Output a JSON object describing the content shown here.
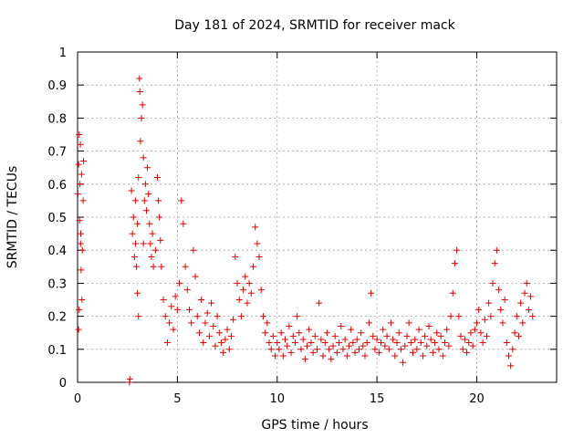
{
  "chart_data": {
    "type": "scatter",
    "title": "Day 181 of 2024, SRMTID for receiver mack",
    "xlabel": "GPS time / hours",
    "ylabel": "SRMTID / TECUs",
    "xlim": [
      0,
      24
    ],
    "ylim": [
      0,
      1
    ],
    "xticks": [
      0,
      5,
      10,
      15,
      20
    ],
    "xtick_labels": [
      "0",
      "5",
      "10",
      "15",
      "20"
    ],
    "yticks": [
      0,
      0.1,
      0.2,
      0.3,
      0.4,
      0.5,
      0.6,
      0.7,
      0.8,
      0.9,
      1
    ],
    "ytick_labels": [
      "0",
      "0.1",
      "0.2",
      "0.3",
      "0.4",
      "0.5",
      "0.6",
      "0.7",
      "0.8",
      "0.9",
      "1"
    ],
    "grid": true,
    "marker": "+",
    "color": "#e00000",
    "series": [
      {
        "name": "SRMTID",
        "points": [
          [
            0.02,
            0.57
          ],
          [
            0.05,
            0.66
          ],
          [
            0.08,
            0.75
          ],
          [
            0.1,
            0.49
          ],
          [
            0.12,
            0.6
          ],
          [
            0.14,
            0.72
          ],
          [
            0.16,
            0.45
          ],
          [
            0.18,
            0.34
          ],
          [
            0.2,
            0.63
          ],
          [
            0.22,
            0.25
          ],
          [
            0.24,
            0.4
          ],
          [
            0.05,
            0.16
          ],
          [
            0.28,
            0.55
          ],
          [
            0.08,
            0.22
          ],
          [
            0.15,
            0.42
          ],
          [
            0.3,
            0.67
          ],
          [
            2.6,
            0.0
          ],
          [
            2.62,
            0.01
          ],
          [
            2.7,
            0.58
          ],
          [
            2.75,
            0.45
          ],
          [
            2.8,
            0.5
          ],
          [
            2.85,
            0.38
          ],
          [
            2.9,
            0.42
          ],
          [
            2.95,
            0.35
          ],
          [
            3.0,
            0.48
          ],
          [
            3.05,
            0.62
          ],
          [
            3.1,
            0.92
          ],
          [
            3.12,
            0.88
          ],
          [
            3.15,
            0.73
          ],
          [
            3.2,
            0.8
          ],
          [
            3.25,
            0.84
          ],
          [
            3.3,
            0.68
          ],
          [
            3.35,
            0.55
          ],
          [
            3.4,
            0.6
          ],
          [
            3.45,
            0.52
          ],
          [
            3.5,
            0.65
          ],
          [
            3.55,
            0.57
          ],
          [
            3.6,
            0.48
          ],
          [
            3.65,
            0.42
          ],
          [
            3.7,
            0.38
          ],
          [
            3.75,
            0.45
          ],
          [
            3.8,
            0.35
          ],
          [
            3.9,
            0.4
          ],
          [
            4.0,
            0.62
          ],
          [
            4.05,
            0.55
          ],
          [
            4.1,
            0.5
          ],
          [
            4.15,
            0.43
          ],
          [
            4.2,
            0.35
          ],
          [
            4.3,
            0.25
          ],
          [
            4.4,
            0.2
          ],
          [
            3.0,
            0.27
          ],
          [
            3.05,
            0.2
          ],
          [
            2.9,
            0.55
          ],
          [
            3.3,
            0.42
          ],
          [
            4.5,
            0.12
          ],
          [
            4.6,
            0.18
          ],
          [
            4.7,
            0.23
          ],
          [
            4.8,
            0.16
          ],
          [
            4.9,
            0.26
          ],
          [
            5.0,
            0.22
          ],
          [
            5.1,
            0.3
          ],
          [
            5.2,
            0.55
          ],
          [
            5.3,
            0.48
          ],
          [
            5.4,
            0.35
          ],
          [
            5.5,
            0.28
          ],
          [
            5.6,
            0.22
          ],
          [
            5.7,
            0.18
          ],
          [
            5.8,
            0.4
          ],
          [
            5.9,
            0.32
          ],
          [
            6.0,
            0.2
          ],
          [
            6.1,
            0.15
          ],
          [
            6.2,
            0.25
          ],
          [
            6.3,
            0.12
          ],
          [
            6.4,
            0.18
          ],
          [
            6.5,
            0.21
          ],
          [
            6.6,
            0.14
          ],
          [
            6.7,
            0.24
          ],
          [
            6.8,
            0.17
          ],
          [
            6.9,
            0.11
          ],
          [
            7.0,
            0.2
          ],
          [
            7.1,
            0.15
          ],
          [
            7.2,
            0.12
          ],
          [
            7.3,
            0.09
          ],
          [
            7.4,
            0.13
          ],
          [
            7.5,
            0.16
          ],
          [
            7.6,
            0.1
          ],
          [
            7.7,
            0.14
          ],
          [
            7.8,
            0.19
          ],
          [
            7.9,
            0.38
          ],
          [
            8.0,
            0.3
          ],
          [
            8.1,
            0.25
          ],
          [
            8.2,
            0.2
          ],
          [
            8.3,
            0.28
          ],
          [
            8.4,
            0.32
          ],
          [
            8.5,
            0.24
          ],
          [
            8.6,
            0.3
          ],
          [
            8.7,
            0.27
          ],
          [
            8.8,
            0.35
          ],
          [
            8.9,
            0.47
          ],
          [
            9.0,
            0.42
          ],
          [
            9.1,
            0.38
          ],
          [
            9.2,
            0.28
          ],
          [
            9.3,
            0.2
          ],
          [
            9.4,
            0.15
          ],
          [
            9.5,
            0.18
          ],
          [
            9.6,
            0.12
          ],
          [
            9.7,
            0.1
          ],
          [
            9.8,
            0.14
          ],
          [
            9.9,
            0.08
          ],
          [
            10.0,
            0.12
          ],
          [
            10.1,
            0.1
          ],
          [
            10.2,
            0.15
          ],
          [
            10.3,
            0.08
          ],
          [
            10.4,
            0.13
          ],
          [
            10.5,
            0.11
          ],
          [
            10.6,
            0.17
          ],
          [
            10.7,
            0.09
          ],
          [
            10.8,
            0.14
          ],
          [
            10.9,
            0.12
          ],
          [
            11.0,
            0.2
          ],
          [
            11.1,
            0.15
          ],
          [
            11.2,
            0.1
          ],
          [
            11.3,
            0.13
          ],
          [
            11.4,
            0.07
          ],
          [
            11.5,
            0.11
          ],
          [
            11.6,
            0.16
          ],
          [
            11.7,
            0.12
          ],
          [
            11.8,
            0.09
          ],
          [
            11.9,
            0.14
          ],
          [
            12.0,
            0.1
          ],
          [
            12.1,
            0.24
          ],
          [
            12.2,
            0.13
          ],
          [
            12.3,
            0.08
          ],
          [
            12.4,
            0.12
          ],
          [
            12.5,
            0.15
          ],
          [
            12.6,
            0.1
          ],
          [
            12.7,
            0.07
          ],
          [
            12.8,
            0.11
          ],
          [
            12.9,
            0.14
          ],
          [
            13.0,
            0.09
          ],
          [
            13.1,
            0.12
          ],
          [
            13.2,
            0.17
          ],
          [
            13.3,
            0.1
          ],
          [
            13.4,
            0.13
          ],
          [
            13.5,
            0.08
          ],
          [
            13.6,
            0.11
          ],
          [
            13.7,
            0.16
          ],
          [
            13.8,
            0.12
          ],
          [
            13.9,
            0.09
          ],
          [
            14.0,
            0.13
          ],
          [
            14.1,
            0.1
          ],
          [
            14.2,
            0.15
          ],
          [
            14.3,
            0.11
          ],
          [
            14.4,
            0.08
          ],
          [
            14.5,
            0.12
          ],
          [
            14.6,
            0.18
          ],
          [
            14.7,
            0.27
          ],
          [
            14.8,
            0.14
          ],
          [
            14.9,
            0.1
          ],
          [
            15.0,
            0.13
          ],
          [
            15.1,
            0.09
          ],
          [
            15.2,
            0.12
          ],
          [
            15.3,
            0.16
          ],
          [
            15.4,
            0.11
          ],
          [
            15.5,
            0.14
          ],
          [
            15.6,
            0.1
          ],
          [
            15.7,
            0.18
          ],
          [
            15.8,
            0.13
          ],
          [
            15.9,
            0.08
          ],
          [
            16.0,
            0.12
          ],
          [
            16.1,
            0.15
          ],
          [
            16.2,
            0.1
          ],
          [
            16.3,
            0.06
          ],
          [
            16.4,
            0.11
          ],
          [
            16.5,
            0.14
          ],
          [
            16.6,
            0.18
          ],
          [
            16.7,
            0.12
          ],
          [
            16.8,
            0.09
          ],
          [
            16.9,
            0.13
          ],
          [
            17.0,
            0.1
          ],
          [
            17.1,
            0.16
          ],
          [
            17.2,
            0.12
          ],
          [
            17.3,
            0.08
          ],
          [
            17.4,
            0.14
          ],
          [
            17.5,
            0.11
          ],
          [
            17.6,
            0.17
          ],
          [
            17.7,
            0.13
          ],
          [
            17.8,
            0.09
          ],
          [
            17.9,
            0.12
          ],
          [
            18.0,
            0.15
          ],
          [
            18.1,
            0.1
          ],
          [
            18.2,
            0.14
          ],
          [
            18.3,
            0.08
          ],
          [
            18.4,
            0.12
          ],
          [
            18.5,
            0.16
          ],
          [
            18.6,
            0.11
          ],
          [
            18.7,
            0.2
          ],
          [
            18.8,
            0.27
          ],
          [
            18.9,
            0.36
          ],
          [
            19.0,
            0.4
          ],
          [
            19.1,
            0.2
          ],
          [
            19.2,
            0.14
          ],
          [
            19.3,
            0.1
          ],
          [
            19.4,
            0.13
          ],
          [
            19.5,
            0.09
          ],
          [
            19.6,
            0.12
          ],
          [
            19.7,
            0.15
          ],
          [
            19.8,
            0.11
          ],
          [
            19.9,
            0.16
          ],
          [
            20.0,
            0.18
          ],
          [
            20.1,
            0.22
          ],
          [
            20.2,
            0.15
          ],
          [
            20.3,
            0.12
          ],
          [
            20.4,
            0.19
          ],
          [
            20.5,
            0.14
          ],
          [
            20.6,
            0.24
          ],
          [
            20.7,
            0.2
          ],
          [
            20.8,
            0.3
          ],
          [
            20.9,
            0.36
          ],
          [
            21.0,
            0.4
          ],
          [
            21.1,
            0.28
          ],
          [
            21.2,
            0.22
          ],
          [
            21.3,
            0.18
          ],
          [
            21.4,
            0.25
          ],
          [
            21.5,
            0.12
          ],
          [
            21.6,
            0.08
          ],
          [
            21.7,
            0.05
          ],
          [
            21.8,
            0.1
          ],
          [
            21.9,
            0.15
          ],
          [
            22.0,
            0.2
          ],
          [
            22.1,
            0.14
          ],
          [
            22.2,
            0.24
          ],
          [
            22.3,
            0.18
          ],
          [
            22.4,
            0.27
          ],
          [
            22.5,
            0.3
          ],
          [
            22.6,
            0.22
          ],
          [
            22.7,
            0.26
          ],
          [
            22.8,
            0.2
          ]
        ]
      }
    ]
  }
}
